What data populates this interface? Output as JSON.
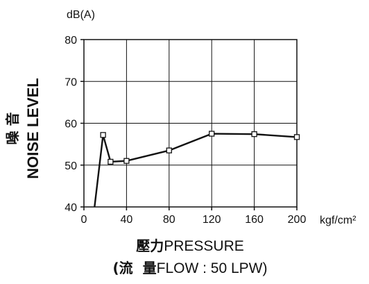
{
  "chart_data": {
    "type": "line",
    "x": [
      10,
      18,
      25,
      40,
      80,
      120,
      160,
      200
    ],
    "y": [
      40,
      57.2,
      50.8,
      51,
      53.5,
      57.5,
      57.4,
      56.7
    ],
    "markers": [
      false,
      true,
      true,
      true,
      true,
      true,
      true,
      true
    ],
    "xlim": [
      0,
      200
    ],
    "ylim": [
      40,
      80
    ],
    "xticks": [
      "0",
      "40",
      "80",
      "120",
      "160",
      "200"
    ],
    "yticks": [
      "40",
      "50",
      "60",
      "70",
      "80"
    ],
    "grid": true,
    "y_unit": "dB(A)",
    "x_unit": "kgf/cm²",
    "ylabel_cjk": "噪 音",
    "ylabel": "NOISE LEVEL",
    "xlabel_cjk": "壓力",
    "xlabel": "PRESSURE",
    "xlabel2_open": "(流",
    "xlabel2_cjk": "量",
    "xlabel2": "FLOW : 50 LPW)",
    "line_color": "#111111",
    "marker_fill": "#ffffff"
  }
}
